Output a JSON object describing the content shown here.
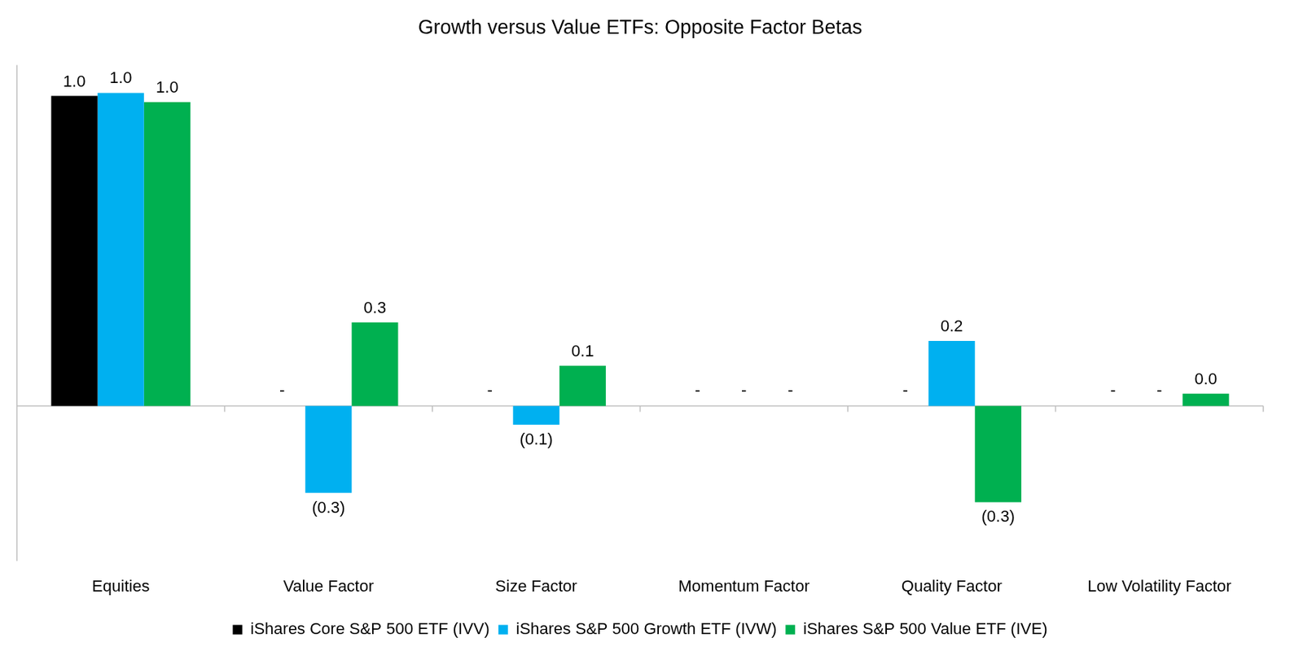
{
  "chart_data": {
    "type": "bar",
    "title": "Growth versus Value ETFs: Opposite Factor Betas",
    "categories": [
      "Equities",
      "Value Factor",
      "Size Factor",
      "Momentum Factor",
      "Quality Factor",
      "Low Volatility Factor"
    ],
    "series": [
      {
        "name": "iShares Core S&P 500 ETF (IVV)",
        "color": "#000000",
        "values": [
          1.0,
          0,
          0,
          0,
          0,
          0
        ],
        "value_labels": [
          "1.0",
          "-",
          "-",
          "-",
          "-",
          "-"
        ]
      },
      {
        "name": "iShares S&P 500 Growth ETF (IVW)",
        "color": "#00B0F0",
        "values": [
          1.01,
          -0.28,
          -0.06,
          0,
          0.21,
          0
        ],
        "value_labels": [
          "1.0",
          "(0.3)",
          "(0.1)",
          "-",
          "0.2",
          "-"
        ]
      },
      {
        "name": "iShares S&P 500 Value ETF (IVE)",
        "color": "#00B050",
        "values": [
          0.98,
          0.27,
          0.13,
          0,
          -0.31,
          0.04
        ],
        "value_labels": [
          "1.0",
          "0.3",
          "0.1",
          "-",
          "(0.3)",
          "0.0"
        ]
      }
    ],
    "ylim": [
      -0.5,
      1.1
    ],
    "grid": false,
    "legend": "bottom",
    "data_labels": true,
    "tick_labels": "x"
  }
}
